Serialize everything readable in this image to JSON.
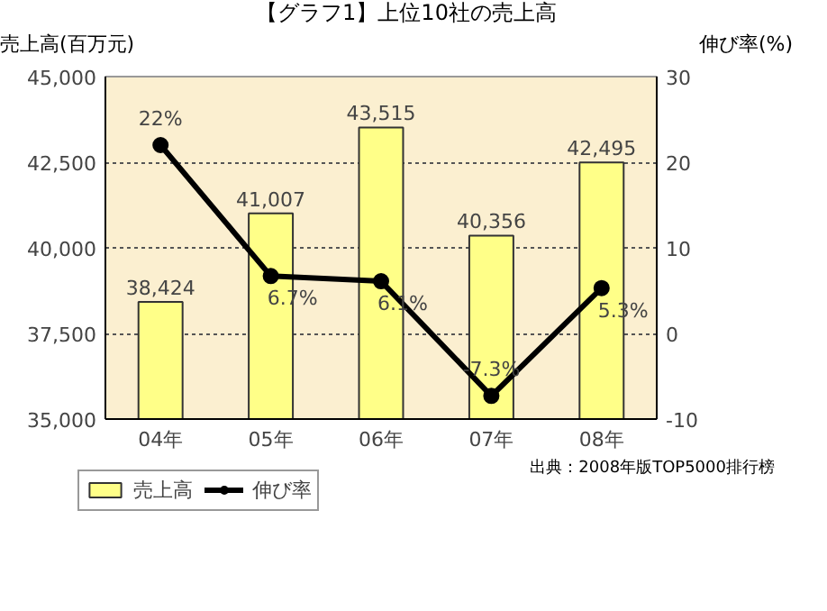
{
  "chart_data": {
    "type": "bar",
    "title": "【グラフ1】上位10社の売上高",
    "ylabel": "売上高(百万元)",
    "y2label": "伸び率(%)",
    "categories": [
      "04年",
      "05年",
      "06年",
      "07年",
      "08年"
    ],
    "series": [
      {
        "name": "売上高",
        "type": "bar",
        "color": "#ffff88",
        "values": [
          38424,
          41007,
          43515,
          40356,
          42495
        ],
        "value_labels": [
          "38,424",
          "41,007",
          "43,515",
          "40,356",
          "42,495"
        ]
      },
      {
        "name": "伸び率",
        "type": "line",
        "axis": "y2",
        "color": "#000000",
        "marker": "circle",
        "values": [
          22,
          6.7,
          6.1,
          -7.3,
          5.3
        ],
        "value_labels": [
          "22%",
          "6.7%",
          "6.1%",
          "-7.3%",
          "5.3%"
        ]
      }
    ],
    "ylim": [
      35000,
      45000
    ],
    "yticks": [
      {
        "value": 35000,
        "label": "35,000"
      },
      {
        "value": 37500,
        "label": "37,500"
      },
      {
        "value": 40000,
        "label": "40,000"
      },
      {
        "value": 42500,
        "label": "42,500"
      },
      {
        "value": 45000,
        "label": "45,000"
      }
    ],
    "y2lim": [
      -10,
      30
    ],
    "y2ticks": [
      -10,
      0,
      10,
      20,
      30
    ],
    "grid": "y",
    "legend": "bottom",
    "annotations": [
      "出典：2008年版TOP5000排行榜"
    ]
  }
}
